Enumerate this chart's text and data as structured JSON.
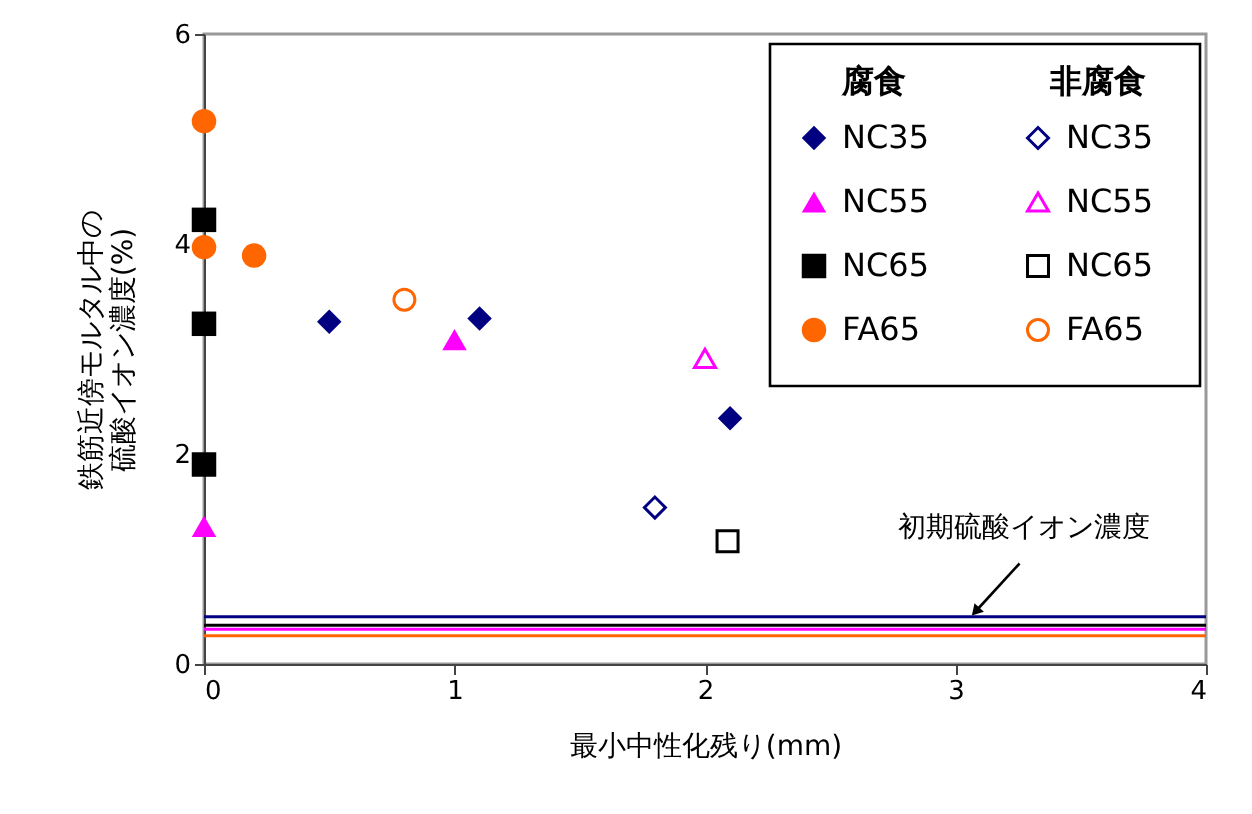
{
  "chart_data": {
    "type": "scatter",
    "xlabel": "最小中性化残り(mm)",
    "ylabel": "鉄筋近傍モルタル中の硫酸イオン濃度(%)",
    "xlim": [
      0,
      4
    ],
    "xticks": [
      {
        "value": 0,
        "label": "0"
      },
      {
        "value": 1,
        "label": "1"
      },
      {
        "value": 2,
        "label": "2"
      },
      {
        "value": 3,
        "label": "3"
      },
      {
        "value": 4,
        "label": "4"
      }
    ],
    "ylim": [
      0,
      6
    ],
    "yticks": [
      0,
      2,
      4,
      6
    ],
    "grid": false,
    "legend": "top right",
    "series": [
      {
        "name": "NC35",
        "color": "#000080",
        "marker": "diamond",
        "x": [
          0.5,
          1.1,
          2.1
        ],
        "values": [
          3.26,
          3.29,
          2.34
        ]
      },
      {
        "name": "NC55",
        "color": "#ff00ff",
        "marker": "triangle",
        "x": [
          0,
          1.0
        ],
        "values": [
          1.31,
          3.09
        ]
      },
      {
        "name": "NC65",
        "color": "#000000",
        "marker": "square",
        "x": [
          0,
          0,
          0
        ],
        "values": [
          4.23,
          3.24,
          1.9
        ]
      },
      {
        "name": "FA65",
        "color": "#ff6600",
        "marker": "circle",
        "x": [
          0,
          0,
          0.2
        ],
        "values": [
          5.17,
          3.97,
          3.89
        ]
      },
      {
        "name": "NC35",
        "color": "#000080",
        "marker": "diamond",
        "x": [
          1.8
        ],
        "values": [
          1.49
        ]
      },
      {
        "name": "NC55",
        "color": "#ff00ff",
        "marker": "triangle",
        "x": [
          2.0
        ],
        "values": [
          2.91
        ]
      },
      {
        "name": "NC65",
        "color": "#000000",
        "marker": "square",
        "x": [
          2.09
        ],
        "values": [
          1.17
        ]
      },
      {
        "name": "FA65",
        "color": "#ff6600",
        "marker": "circle",
        "x": [
          0.8
        ],
        "values": [
          3.47
        ]
      }
    ],
    "ref_lines": [
      {
        "axis": "y",
        "value": 0.45,
        "color": "#000080"
      },
      {
        "axis": "y",
        "value": 0.37,
        "color": "#000000"
      },
      {
        "axis": "y",
        "value": 0.33,
        "color": "#ff00ff"
      },
      {
        "axis": "y",
        "value": 0.27,
        "color": "#ff6600"
      }
    ],
    "annotations": [
      "腐食",
      "非腐食",
      {
        "text": "初期硫酸イオン濃度",
        "x": 3.08,
        "y": 0.5
      }
    ]
  }
}
